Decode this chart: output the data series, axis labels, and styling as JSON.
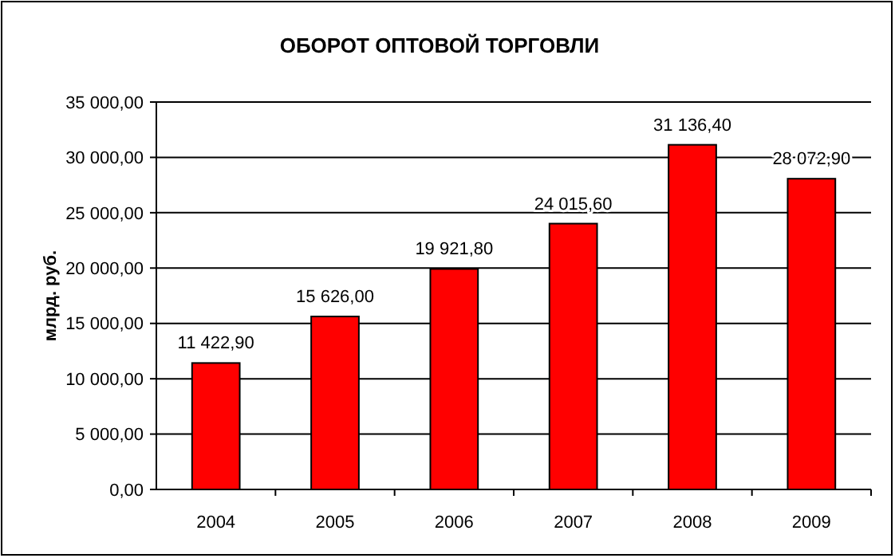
{
  "chart_data": {
    "type": "bar",
    "title": "ОБОРОТ ОПТОВОЙ ТОРГОВЛИ",
    "ylabel": "млрд. руб.",
    "categories": [
      "2004",
      "2005",
      "2006",
      "2007",
      "2008",
      "2009"
    ],
    "values": [
      11422.9,
      15626,
      19921.8,
      24015.6,
      31136.4,
      28072.9
    ],
    "value_labels": [
      "11 422,90",
      "15 626,00",
      "19 921,80",
      "24 015,60",
      "31 136,40",
      "28 072,90"
    ],
    "color": "#ff0000",
    "ylim": [
      0,
      35000
    ],
    "yticks": [
      {
        "value": 0,
        "label": "0,00"
      },
      {
        "value": 5000,
        "label": "5 000,00"
      },
      {
        "value": 10000,
        "label": "10 000,00"
      },
      {
        "value": 15000,
        "label": "15 000,00"
      },
      {
        "value": 20000,
        "label": "20 000,00"
      },
      {
        "value": 25000,
        "label": "25 000,00"
      },
      {
        "value": 30000,
        "label": "30 000,00"
      },
      {
        "value": 35000,
        "label": "35 000,00"
      }
    ],
    "grid": "y"
  }
}
